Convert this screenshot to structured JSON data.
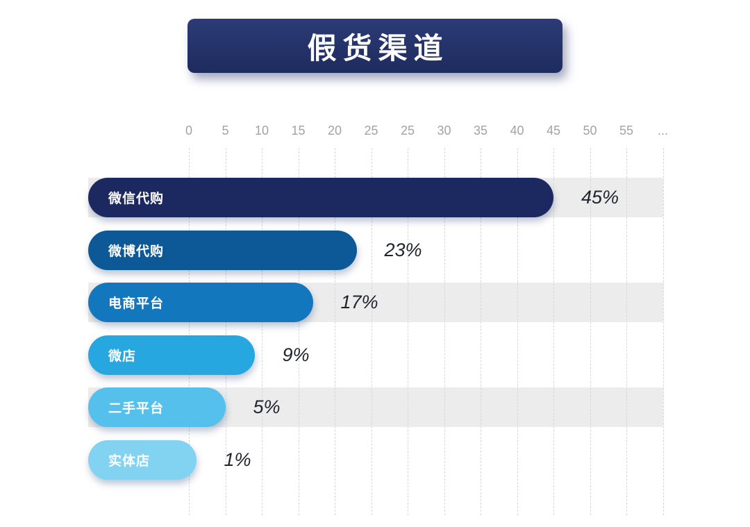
{
  "title": "假货渠道",
  "chart_data": {
    "type": "bar",
    "orientation": "horizontal",
    "title": "假货渠道",
    "xlabel": "",
    "ylabel": "",
    "xlim": [
      0,
      57
    ],
    "grid": "dashed-vertical",
    "legend": "none",
    "axis_ticks": [
      "0",
      "5",
      "10",
      "15",
      "20",
      "25",
      "25",
      "30",
      "35",
      "40",
      "45",
      "50",
      "55",
      "..."
    ],
    "categories": [
      "微信代购",
      "微博代购",
      "电商平台",
      "微店",
      "二手平台",
      "实体店"
    ],
    "values": [
      45,
      23,
      17,
      9,
      5,
      1
    ],
    "value_labels": [
      "45%",
      "23%",
      "17%",
      "9%",
      "5%",
      "1%"
    ],
    "bar_colors": [
      "#1b2960",
      "#0d5896",
      "#1377bd",
      "#27a7df",
      "#54c0eb",
      "#82d2f2"
    ],
    "row_band_color": "#ececec",
    "banner_color": "#22306a"
  }
}
